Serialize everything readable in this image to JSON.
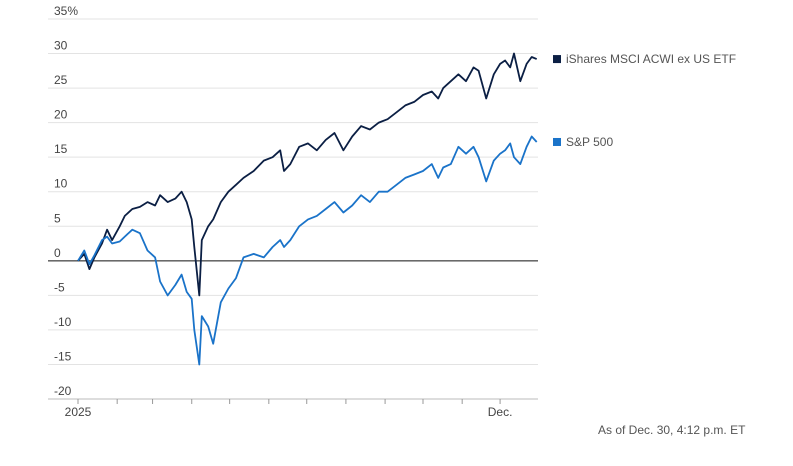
{
  "chart_data": {
    "type": "line",
    "y_unit_label": "35%",
    "y_ticks": [
      30,
      25,
      20,
      15,
      10,
      5,
      0,
      -5,
      -10,
      -15,
      -20
    ],
    "ylim": [
      -20,
      35
    ],
    "x_tick_labels": [
      "2025",
      "Dec."
    ],
    "x_range": [
      "2025-01-01",
      "2025-12-31"
    ],
    "grid": "horizontal",
    "legend_placement": "right",
    "series": [
      {
        "name": "iShares MSCI ACWI ex US ETF",
        "color": "#0b1f44",
        "points": [
          [
            "2025-01-01",
            0
          ],
          [
            "2025-01-06",
            1.0
          ],
          [
            "2025-01-10",
            -1.2
          ],
          [
            "2025-01-14",
            0.5
          ],
          [
            "2025-01-20",
            2.5
          ],
          [
            "2025-01-24",
            4.5
          ],
          [
            "2025-01-28",
            3.0
          ],
          [
            "2025-02-03",
            5.0
          ],
          [
            "2025-02-07",
            6.5
          ],
          [
            "2025-02-13",
            7.5
          ],
          [
            "2025-02-19",
            7.8
          ],
          [
            "2025-02-25",
            8.5
          ],
          [
            "2025-03-03",
            8.0
          ],
          [
            "2025-03-07",
            9.5
          ],
          [
            "2025-03-13",
            8.5
          ],
          [
            "2025-03-19",
            9.0
          ],
          [
            "2025-03-24",
            10.0
          ],
          [
            "2025-03-28",
            8.5
          ],
          [
            "2025-04-01",
            6.0
          ],
          [
            "2025-04-03",
            2.0
          ],
          [
            "2025-04-07",
            -5.0
          ],
          [
            "2025-04-09",
            3.0
          ],
          [
            "2025-04-14",
            5.0
          ],
          [
            "2025-04-18",
            6.0
          ],
          [
            "2025-04-24",
            8.5
          ],
          [
            "2025-04-30",
            10.0
          ],
          [
            "2025-05-06",
            11.0
          ],
          [
            "2025-05-12",
            12.0
          ],
          [
            "2025-05-20",
            13.0
          ],
          [
            "2025-05-28",
            14.5
          ],
          [
            "2025-06-04",
            15.0
          ],
          [
            "2025-06-10",
            16.0
          ],
          [
            "2025-06-13",
            13.0
          ],
          [
            "2025-06-18",
            14.0
          ],
          [
            "2025-06-25",
            16.5
          ],
          [
            "2025-07-02",
            17.0
          ],
          [
            "2025-07-09",
            16.0
          ],
          [
            "2025-07-16",
            17.5
          ],
          [
            "2025-07-23",
            18.5
          ],
          [
            "2025-07-30",
            16.0
          ],
          [
            "2025-08-06",
            18.0
          ],
          [
            "2025-08-13",
            19.5
          ],
          [
            "2025-08-20",
            19.0
          ],
          [
            "2025-08-27",
            20.0
          ],
          [
            "2025-09-03",
            20.5
          ],
          [
            "2025-09-10",
            21.5
          ],
          [
            "2025-09-17",
            22.5
          ],
          [
            "2025-09-24",
            23.0
          ],
          [
            "2025-10-01",
            24.0
          ],
          [
            "2025-10-08",
            24.5
          ],
          [
            "2025-10-13",
            23.5
          ],
          [
            "2025-10-17",
            25.0
          ],
          [
            "2025-10-23",
            26.0
          ],
          [
            "2025-10-29",
            27.0
          ],
          [
            "2025-11-04",
            26.0
          ],
          [
            "2025-11-10",
            28.0
          ],
          [
            "2025-11-14",
            27.5
          ],
          [
            "2025-11-20",
            23.5
          ],
          [
            "2025-11-26",
            27.0
          ],
          [
            "2025-12-01",
            28.5
          ],
          [
            "2025-12-05",
            29.0
          ],
          [
            "2025-12-09",
            28.0
          ],
          [
            "2025-12-12",
            30.0
          ],
          [
            "2025-12-17",
            26.0
          ],
          [
            "2025-12-22",
            28.5
          ],
          [
            "2025-12-26",
            29.5
          ],
          [
            "2025-12-30",
            29.2
          ]
        ]
      },
      {
        "name": "S&P 500",
        "color": "#1a73c9",
        "points": [
          [
            "2025-01-01",
            0
          ],
          [
            "2025-01-06",
            1.5
          ],
          [
            "2025-01-10",
            -0.5
          ],
          [
            "2025-01-14",
            0.8
          ],
          [
            "2025-01-20",
            3.0
          ],
          [
            "2025-01-24",
            3.5
          ],
          [
            "2025-01-28",
            2.5
          ],
          [
            "2025-02-03",
            2.8
          ],
          [
            "2025-02-07",
            3.5
          ],
          [
            "2025-02-13",
            4.5
          ],
          [
            "2025-02-19",
            4.0
          ],
          [
            "2025-02-25",
            1.5
          ],
          [
            "2025-03-03",
            0.5
          ],
          [
            "2025-03-07",
            -3.0
          ],
          [
            "2025-03-13",
            -5.0
          ],
          [
            "2025-03-19",
            -3.5
          ],
          [
            "2025-03-24",
            -2.0
          ],
          [
            "2025-03-28",
            -4.5
          ],
          [
            "2025-04-01",
            -5.5
          ],
          [
            "2025-04-03",
            -10.0
          ],
          [
            "2025-04-07",
            -15.0
          ],
          [
            "2025-04-09",
            -8.0
          ],
          [
            "2025-04-14",
            -9.5
          ],
          [
            "2025-04-18",
            -12.0
          ],
          [
            "2025-04-24",
            -6.0
          ],
          [
            "2025-04-30",
            -4.0
          ],
          [
            "2025-05-06",
            -2.5
          ],
          [
            "2025-05-12",
            0.5
          ],
          [
            "2025-05-20",
            1.0
          ],
          [
            "2025-05-28",
            0.5
          ],
          [
            "2025-06-04",
            2.0
          ],
          [
            "2025-06-10",
            3.0
          ],
          [
            "2025-06-13",
            2.0
          ],
          [
            "2025-06-18",
            3.0
          ],
          [
            "2025-06-25",
            5.0
          ],
          [
            "2025-07-02",
            6.0
          ],
          [
            "2025-07-09",
            6.5
          ],
          [
            "2025-07-16",
            7.5
          ],
          [
            "2025-07-23",
            8.5
          ],
          [
            "2025-07-30",
            7.0
          ],
          [
            "2025-08-06",
            8.0
          ],
          [
            "2025-08-13",
            9.5
          ],
          [
            "2025-08-20",
            8.5
          ],
          [
            "2025-08-27",
            10.0
          ],
          [
            "2025-09-03",
            10.0
          ],
          [
            "2025-09-10",
            11.0
          ],
          [
            "2025-09-17",
            12.0
          ],
          [
            "2025-09-24",
            12.5
          ],
          [
            "2025-10-01",
            13.0
          ],
          [
            "2025-10-08",
            14.0
          ],
          [
            "2025-10-13",
            12.0
          ],
          [
            "2025-10-17",
            13.5
          ],
          [
            "2025-10-23",
            14.0
          ],
          [
            "2025-10-29",
            16.5
          ],
          [
            "2025-11-04",
            15.5
          ],
          [
            "2025-11-10",
            16.5
          ],
          [
            "2025-11-14",
            15.0
          ],
          [
            "2025-11-20",
            11.5
          ],
          [
            "2025-11-26",
            14.5
          ],
          [
            "2025-12-01",
            15.5
          ],
          [
            "2025-12-05",
            16.0
          ],
          [
            "2025-12-09",
            17.0
          ],
          [
            "2025-12-12",
            15.0
          ],
          [
            "2025-12-17",
            14.0
          ],
          [
            "2025-12-22",
            16.5
          ],
          [
            "2025-12-26",
            18.0
          ],
          [
            "2025-12-30",
            17.2
          ]
        ]
      }
    ]
  },
  "footnote": "As of Dec. 30, 4:12 p.m. ET"
}
